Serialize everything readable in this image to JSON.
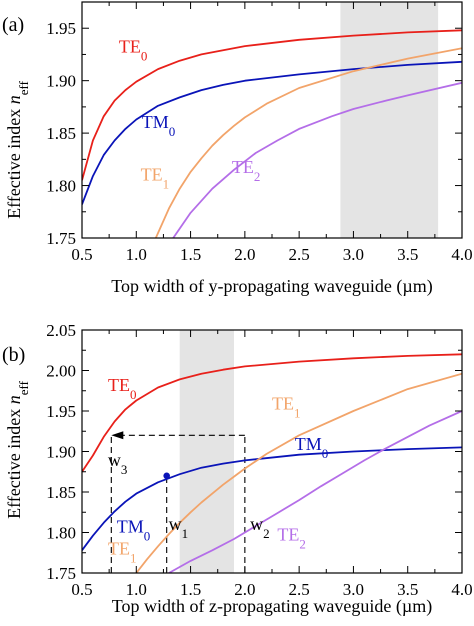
{
  "chart_data": [
    {
      "type": "line",
      "panel_label": "(a)",
      "xlabel": "Top width of y-propagating waveguide (µm)",
      "ylabel": "Effective index n_eff",
      "ylabel_main": "Effective index ",
      "ylabel_italic": "n",
      "ylabel_sub": "eff",
      "xlim": [
        0.5,
        4.0
      ],
      "ylim": [
        1.75,
        1.975
      ],
      "xticks": [
        0.5,
        1.0,
        1.5,
        2.0,
        2.5,
        3.0,
        3.5,
        4.0
      ],
      "xtick_labels": [
        "0.5",
        "1.0",
        "1.5",
        "2.0",
        "2.5",
        "3.0",
        "3.5",
        "4.0"
      ],
      "yticks": [
        1.75,
        1.8,
        1.85,
        1.9,
        1.95
      ],
      "ytick_labels": [
        "1.75",
        "1.80",
        "1.85",
        "1.90",
        "1.95"
      ],
      "grid": false,
      "shaded_region": {
        "x": [
          2.88,
          3.78
        ]
      },
      "series": [
        {
          "name": "TE0",
          "main": "TE",
          "sub": "0",
          "color": "#e8201a",
          "label_at": [
            0.84,
            1.927
          ],
          "x": [
            0.5,
            0.6,
            0.7,
            0.8,
            0.9,
            1.0,
            1.2,
            1.4,
            1.6,
            1.8,
            2.0,
            2.5,
            3.0,
            3.5,
            4.0
          ],
          "y": [
            1.805,
            1.843,
            1.866,
            1.881,
            1.891,
            1.899,
            1.911,
            1.919,
            1.925,
            1.929,
            1.933,
            1.939,
            1.943,
            1.946,
            1.948
          ]
        },
        {
          "name": "TM0",
          "main": "TM",
          "sub": "0",
          "color": "#0a14b8",
          "label_at": [
            1.05,
            1.855
          ],
          "x": [
            0.5,
            0.6,
            0.7,
            0.8,
            0.9,
            1.0,
            1.2,
            1.4,
            1.6,
            1.8,
            2.0,
            2.5,
            3.0,
            3.5,
            4.0
          ],
          "y": [
            1.782,
            1.809,
            1.829,
            1.843,
            1.854,
            1.863,
            1.876,
            1.884,
            1.891,
            1.896,
            1.9,
            1.906,
            1.911,
            1.915,
            1.918
          ]
        },
        {
          "name": "TE1",
          "main": "TE",
          "sub": "1",
          "color": "#f2a46a",
          "label_at": [
            1.04,
            1.805
          ],
          "x": [
            1.18,
            1.3,
            1.4,
            1.5,
            1.6,
            1.7,
            1.8,
            1.9,
            2.0,
            2.2,
            2.5,
            3.0,
            3.5,
            4.0
          ],
          "y": [
            1.75,
            1.778,
            1.797,
            1.813,
            1.826,
            1.838,
            1.848,
            1.857,
            1.865,
            1.878,
            1.893,
            1.909,
            1.921,
            1.931
          ]
        },
        {
          "name": "TE2",
          "main": "TE",
          "sub": "2",
          "color": "#b46ee8",
          "label_at": [
            1.88,
            1.812
          ],
          "x": [
            1.34,
            1.5,
            1.7,
            1.9,
            2.1,
            2.3,
            2.5,
            2.8,
            3.0,
            3.3,
            3.5,
            4.0
          ],
          "y": [
            1.75,
            1.774,
            1.797,
            1.815,
            1.831,
            1.843,
            1.854,
            1.866,
            1.873,
            1.881,
            1.886,
            1.898
          ]
        }
      ]
    },
    {
      "type": "line",
      "panel_label": "(b)",
      "xlabel": "Top width of z-propagating waveguide (µm)",
      "ylabel": "Effective index n_eff",
      "ylabel_main": "Effective index ",
      "ylabel_italic": "n",
      "ylabel_sub": "eff",
      "xlim": [
        0.5,
        4.0
      ],
      "ylim": [
        1.75,
        2.05
      ],
      "xticks": [
        0.5,
        1.0,
        1.5,
        2.0,
        2.5,
        3.0,
        3.5,
        4.0
      ],
      "xtick_labels": [
        "0.5",
        "1.0",
        "1.5",
        "2.0",
        "2.5",
        "3.0",
        "3.5",
        "4.0"
      ],
      "yticks": [
        1.75,
        1.8,
        1.85,
        1.9,
        1.95,
        2.0,
        2.05
      ],
      "ytick_labels": [
        "1.75",
        "1.80",
        "1.85",
        "1.90",
        "1.95",
        "2.00",
        "2.05"
      ],
      "grid": false,
      "shaded_region": {
        "x": [
          1.4,
          1.9
        ]
      },
      "series": [
        {
          "name": "TE0",
          "main": "TE",
          "sub": "0",
          "color": "#e8201a",
          "label_at": [
            0.74,
            1.975
          ],
          "x": [
            0.5,
            0.6,
            0.7,
            0.8,
            0.9,
            1.0,
            1.2,
            1.4,
            1.6,
            1.8,
            2.0,
            2.5,
            3.0,
            3.5,
            4.0
          ],
          "y": [
            1.875,
            1.895,
            1.918,
            1.937,
            1.952,
            1.963,
            1.979,
            1.989,
            1.996,
            2.001,
            2.005,
            2.011,
            2.015,
            2.018,
            2.02
          ]
        },
        {
          "name": "TM0",
          "main": "TM",
          "sub": "0",
          "color": "#0a14b8",
          "label_at": [
            2.46,
            1.902
          ],
          "label2_at": [
            0.82,
            1.8
          ],
          "x": [
            0.5,
            0.6,
            0.7,
            0.8,
            0.9,
            1.0,
            1.2,
            1.4,
            1.6,
            1.8,
            2.0,
            2.5,
            3.0,
            3.5,
            4.0
          ],
          "y": [
            1.778,
            1.796,
            1.812,
            1.826,
            1.838,
            1.848,
            1.862,
            1.872,
            1.88,
            1.885,
            1.889,
            1.896,
            1.9,
            1.903,
            1.905
          ]
        },
        {
          "name": "TE1",
          "main": "TE",
          "sub": "1",
          "color": "#f2a46a",
          "label_at": [
            2.25,
            1.952
          ],
          "label2_at": [
            0.74,
            1.773
          ],
          "x": [
            1.0,
            1.1,
            1.2,
            1.3,
            1.4,
            1.5,
            1.6,
            1.7,
            1.8,
            1.9,
            2.0,
            2.2,
            2.5,
            3.0,
            3.5,
            4.0
          ],
          "y": [
            1.75,
            1.767,
            1.783,
            1.798,
            1.812,
            1.825,
            1.837,
            1.848,
            1.859,
            1.869,
            1.879,
            1.897,
            1.92,
            1.95,
            1.977,
            1.996
          ]
        },
        {
          "name": "TE2",
          "main": "TE",
          "sub": "2",
          "color": "#b46ee8",
          "label_at": [
            2.3,
            1.79
          ],
          "x": [
            1.3,
            1.5,
            1.7,
            1.9,
            2.1,
            2.3,
            2.5,
            2.7,
            2.9,
            3.1,
            3.3,
            3.5,
            3.7,
            4.0
          ],
          "y": [
            1.75,
            1.765,
            1.778,
            1.792,
            1.808,
            1.824,
            1.84,
            1.857,
            1.873,
            1.889,
            1.904,
            1.918,
            1.932,
            1.95
          ]
        }
      ],
      "annotations": [
        {
          "name": "w1",
          "main": "w",
          "sub": "1",
          "x": 1.28,
          "y_from": 1.75,
          "y_to": 1.87,
          "label_at": [
            1.28,
            1.803
          ]
        },
        {
          "name": "w2",
          "main": "w",
          "sub": "2",
          "x": 2.0,
          "y_from": 1.75,
          "y_to": 1.92,
          "label_at": [
            2.03,
            1.803
          ]
        },
        {
          "name": "w3",
          "main": "w",
          "sub": "3",
          "x": 0.77,
          "y_from": 1.75,
          "y_to": 1.92,
          "label_at": [
            0.72,
            1.882
          ]
        }
      ],
      "arrow": {
        "from": [
          2.0,
          1.92
        ],
        "to": [
          0.77,
          1.92
        ]
      },
      "marker": {
        "x": 1.28,
        "y": 1.87,
        "color": "#0a14b8"
      }
    }
  ]
}
